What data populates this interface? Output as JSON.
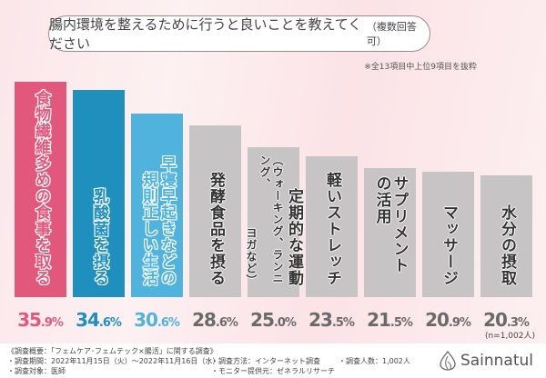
{
  "header": {
    "title": "腸内環境を整えるために行うと良いことを教えてください",
    "title_suffix": "（複数回答可）",
    "note": "※全13項目中上位9項目を抜粋"
  },
  "chart_data": {
    "type": "bar",
    "categories": [
      [
        "食物繊維多めの食事を取る"
      ],
      [
        "乳酸菌を摂る"
      ],
      [
        "早寝早起きなどの",
        "規則正しい生活"
      ],
      [
        "発酵食品を摂る"
      ],
      [
        "定期的な運動",
        "（ウォーキング、ランニング、",
        "ヨガなど）"
      ],
      [
        "軽いストレッチ"
      ],
      [
        "サプリメントの活用"
      ],
      [
        "マッサージ"
      ],
      [
        "水分の摂取"
      ]
    ],
    "values": [
      35.9,
      34.6,
      30.6,
      28.6,
      25.0,
      23.5,
      21.5,
      20.9,
      20.3
    ],
    "value_labels": [
      "35.9%",
      "34.6%",
      "30.6%",
      "28.6%",
      "25.0%",
      "23.5%",
      "21.5%",
      "20.9%",
      "20.3%"
    ],
    "unit": "%",
    "colors": [
      "#e2587c",
      "#1f8fbe",
      "#4fb3de",
      "#c6c4c4",
      "#c6c4c4",
      "#c6c4c4",
      "#c6c4c4",
      "#c6c4c4",
      "#c6c4c4"
    ],
    "value_colors": [
      "#e2587c",
      "#1f8fbe",
      "#4fb3de",
      "#6a6a6a",
      "#6a6a6a",
      "#6a6a6a",
      "#6a6a6a",
      "#6a6a6a",
      "#6a6a6a"
    ],
    "ylim": [
      0,
      36
    ],
    "grid": false,
    "sample_note": "(n=1,002人)"
  },
  "footer": {
    "summary": "《調査概要：「フェムケア･フェムテック×腸活」に関する調査》",
    "period": "・調査期間：2022年11月15日（火）〜2022年11月16日（水）",
    "target": "・調査対象：医師",
    "method": "・調査方法：インターネット調査",
    "provider": "・モニター提供元：ゼネラルリサーチ",
    "count": "・調査人数：1,002人",
    "brand": "Sainnatul"
  }
}
